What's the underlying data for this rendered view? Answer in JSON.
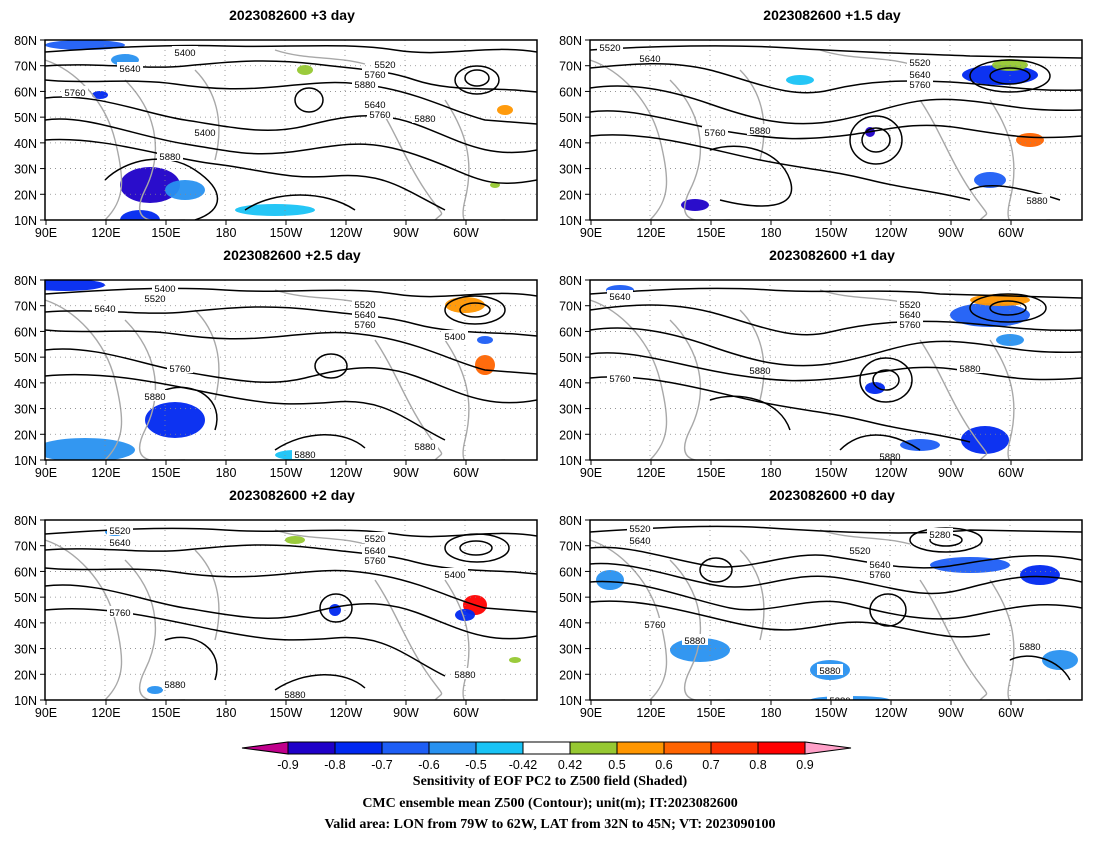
{
  "panels": [
    {
      "title": "2023082600  +3 day",
      "labels": [
        "5400",
        "5520",
        "5640",
        "5760",
        "5880",
        "5760",
        "5640",
        "5400",
        "5880",
        "5760",
        "5880"
      ]
    },
    {
      "title": "2023082600  +1.5 day",
      "labels": [
        "5520",
        "5640",
        "5520",
        "5640",
        "5760",
        "5760",
        "5880",
        "5880",
        "5880"
      ]
    },
    {
      "title": "2023082600  +2.5 day",
      "labels": [
        "5400",
        "5520",
        "5640",
        "5520",
        "5640",
        "5760",
        "5400",
        "5760",
        "5880",
        "5880",
        "5880"
      ]
    },
    {
      "title": "2023082600  +1 day",
      "labels": [
        "5640",
        "5520",
        "5640",
        "5760",
        "5760",
        "5880",
        "5880",
        "5880"
      ]
    },
    {
      "title": "2023082600  +2 day",
      "labels": [
        "5520",
        "5640",
        "5520",
        "5640",
        "5760",
        "5400",
        "5760",
        "5880",
        "5880",
        "5880"
      ]
    },
    {
      "title": "2023082600  +0 day",
      "labels": [
        "5520",
        "5640",
        "5280",
        "5520",
        "5640",
        "5760",
        "5760",
        "5880",
        "5880",
        "5880",
        "5880"
      ]
    }
  ],
  "x_ticks": [
    "90E",
    "120E",
    "150E",
    "180",
    "150W",
    "120W",
    "90W",
    "60W"
  ],
  "y_ticks": [
    "80N",
    "70N",
    "60N",
    "50N",
    "40N",
    "30N",
    "20N",
    "10N"
  ],
  "colorbar": {
    "ticks": [
      "-0.9",
      "-0.8",
      "-0.7",
      "-0.6",
      "-0.5",
      "-0.42",
      "0.42",
      "0.5",
      "0.6",
      "0.7",
      "0.8",
      "0.9"
    ],
    "colors": [
      "#c0008c",
      "#1f00c8",
      "#0028f0",
      "#1e5ef5",
      "#2891f0",
      "#19c3f5",
      "#ffffff",
      "#96c832",
      "#ff9600",
      "#ff6400",
      "#ff3200",
      "#ff0000",
      "#ffa0c8"
    ]
  },
  "caption": {
    "line1": "Sensitivity of EOF PC2 to Z500 field (Shaded)",
    "line2": "CMC ensemble mean Z500 (Contour); unit(m); IT:2023082600",
    "line3": "Valid area: LON from 79W to 62W, LAT from 32N to 45N; VT: 2023090100"
  },
  "colors": {
    "contour": "#000000",
    "coast": "#a8a8a8",
    "grid": "#888888"
  }
}
